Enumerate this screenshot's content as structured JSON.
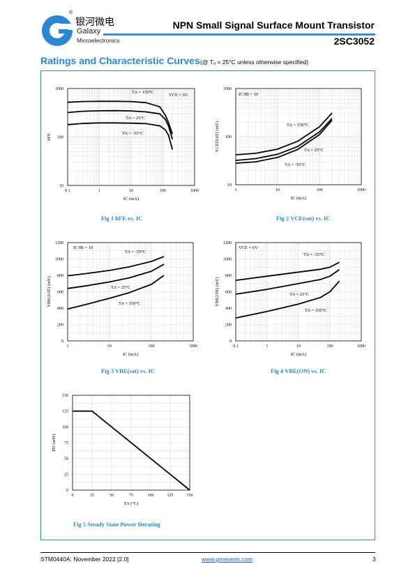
{
  "header": {
    "brand_cn": "银河微电",
    "registered": "®",
    "brand_en1": "Galaxy",
    "brand_en2": "Microelectronics",
    "title": "NPN Small Signal Surface Mount Transistor",
    "part_number": "2SC3052"
  },
  "section": {
    "title": "Ratings and Characteristic Curves",
    "condition": "(@ Tₐ = 25°C unless otherwise specified)"
  },
  "colors": {
    "accent": "#2b86d6",
    "frame": "#3a8fd6"
  },
  "chart_data": [
    {
      "id": "fig1",
      "type": "line",
      "caption": "Fig 1   hFE vs. IC",
      "x_scale": "log",
      "y_scale": "log",
      "xlim": [
        0.1,
        1000
      ],
      "ylim": [
        10,
        1000
      ],
      "xticks": [
        "0.1",
        "1",
        "10",
        "100",
        "1000"
      ],
      "yticks": [
        "10",
        "100",
        "1000"
      ],
      "xlabel": "IC (mA)",
      "ylabel": "hFE",
      "grid": true,
      "annotation": "VCE = 6V",
      "series": [
        {
          "name": "TA = 150°C",
          "x": [
            0.1,
            0.3,
            1,
            3,
            10,
            30,
            80,
            120,
            150,
            200
          ],
          "y": [
            520,
            540,
            545,
            545,
            540,
            510,
            420,
            280,
            200,
            115
          ]
        },
        {
          "name": "TA = 25°C",
          "x": [
            0.1,
            0.3,
            1,
            3,
            10,
            30,
            80,
            120,
            150,
            200
          ],
          "y": [
            320,
            340,
            348,
            350,
            345,
            330,
            300,
            230,
            170,
            90
          ]
        },
        {
          "name": "TA = -55°C",
          "x": [
            0.1,
            0.3,
            1,
            3,
            10,
            30,
            80,
            120,
            150,
            200
          ],
          "y": [
            180,
            190,
            195,
            195,
            193,
            188,
            170,
            140,
            110,
            55
          ]
        }
      ]
    },
    {
      "id": "fig2",
      "type": "line",
      "caption": "Fig 2   VCE(sat) vs. IC",
      "x_scale": "log",
      "y_scale": "log",
      "xlim": [
        1,
        1000
      ],
      "ylim": [
        10,
        1000
      ],
      "xticks": [
        "1",
        "10",
        "100",
        "1000"
      ],
      "yticks": [
        "10",
        "100",
        "1000"
      ],
      "xlabel": "IC (mA)",
      "ylabel": "VCE(SAT) (mV)",
      "grid": true,
      "annotation": "IC/IB = 10",
      "series": [
        {
          "name": "TA = 150°C",
          "x": [
            1,
            3,
            10,
            30,
            100,
            200
          ],
          "y": [
            42,
            45,
            55,
            80,
            160,
            310
          ]
        },
        {
          "name": "TA = 25°C",
          "x": [
            1,
            3,
            10,
            30,
            100,
            200
          ],
          "y": [
            32,
            35,
            43,
            62,
            125,
            240
          ]
        },
        {
          "name": "TA = -55°C",
          "x": [
            1,
            3,
            10,
            30,
            100,
            200
          ],
          "y": [
            28,
            30,
            37,
            54,
            110,
            220
          ]
        }
      ]
    },
    {
      "id": "fig3",
      "type": "line",
      "caption": "Fig 3   VBE(sat) vs. IC",
      "x_scale": "log",
      "y_scale": "linear",
      "xlim": [
        1,
        1000
      ],
      "ylim": [
        0,
        1200
      ],
      "xticks": [
        "1",
        "10",
        "100",
        "1000"
      ],
      "yticks": [
        "0",
        "200",
        "400",
        "600",
        "800",
        "1000",
        "1200"
      ],
      "xlabel": "IC (mA)",
      "ylabel": "VBE(SAT) (mV)",
      "grid": true,
      "annotation": "IC/IB = 10",
      "series": [
        {
          "name": "TA = -55°C",
          "x": [
            1,
            3,
            10,
            30,
            100,
            200
          ],
          "y": [
            795,
            825,
            860,
            905,
            970,
            1030
          ]
        },
        {
          "name": "TA = 25°C",
          "x": [
            1,
            3,
            10,
            30,
            100,
            200
          ],
          "y": [
            640,
            675,
            720,
            770,
            850,
            935
          ]
        },
        {
          "name": "TA = 150°C",
          "x": [
            1,
            3,
            10,
            30,
            100,
            200
          ],
          "y": [
            390,
            450,
            520,
            590,
            690,
            800
          ]
        }
      ]
    },
    {
      "id": "fig4",
      "type": "line",
      "caption": "Fig 4   VBE(ON) vs. IC",
      "x_scale": "log",
      "y_scale": "linear",
      "xlim": [
        0.1,
        1000
      ],
      "ylim": [
        0,
        1200
      ],
      "xticks": [
        "0.1",
        "1",
        "10",
        "100",
        "1000"
      ],
      "yticks": [
        "0",
        "200",
        "400",
        "600",
        "800",
        "1000",
        "1200"
      ],
      "xlabel": "IC (mA)",
      "ylabel": "VBE(ON) (mV)",
      "grid": true,
      "annotation": "VCE = 6V",
      "series": [
        {
          "name": "TA = -55°C",
          "x": [
            0.1,
            1,
            10,
            50,
            100,
            200
          ],
          "y": [
            740,
            790,
            840,
            875,
            900,
            960
          ]
        },
        {
          "name": "TA = 25°C",
          "x": [
            0.1,
            1,
            10,
            50,
            100,
            200
          ],
          "y": [
            570,
            630,
            700,
            750,
            790,
            870
          ]
        },
        {
          "name": "TA = 150°C",
          "x": [
            0.1,
            1,
            10,
            50,
            100,
            200
          ],
          "y": [
            280,
            360,
            450,
            530,
            600,
            730
          ]
        }
      ]
    },
    {
      "id": "fig5",
      "type": "line",
      "caption": "Fig 5   Steady State Power Derating",
      "x_scale": "linear",
      "y_scale": "linear",
      "xlim": [
        0,
        150
      ],
      "ylim": [
        0,
        150
      ],
      "xticks": [
        "0",
        "25",
        "50",
        "75",
        "100",
        "125",
        "150"
      ],
      "yticks": [
        "0",
        "25",
        "50",
        "75",
        "100",
        "125",
        "150"
      ],
      "xlabel": "TA (°C)",
      "ylabel": "PD (mW)",
      "grid": true,
      "series": [
        {
          "x": [
            0,
            25,
            150
          ],
          "y": [
            125,
            125,
            0
          ]
        }
      ]
    }
  ],
  "footer": {
    "doc_id": "STM0440A: November 2022 [2.0]",
    "url": "www.gmesemi.com",
    "page": "3"
  }
}
